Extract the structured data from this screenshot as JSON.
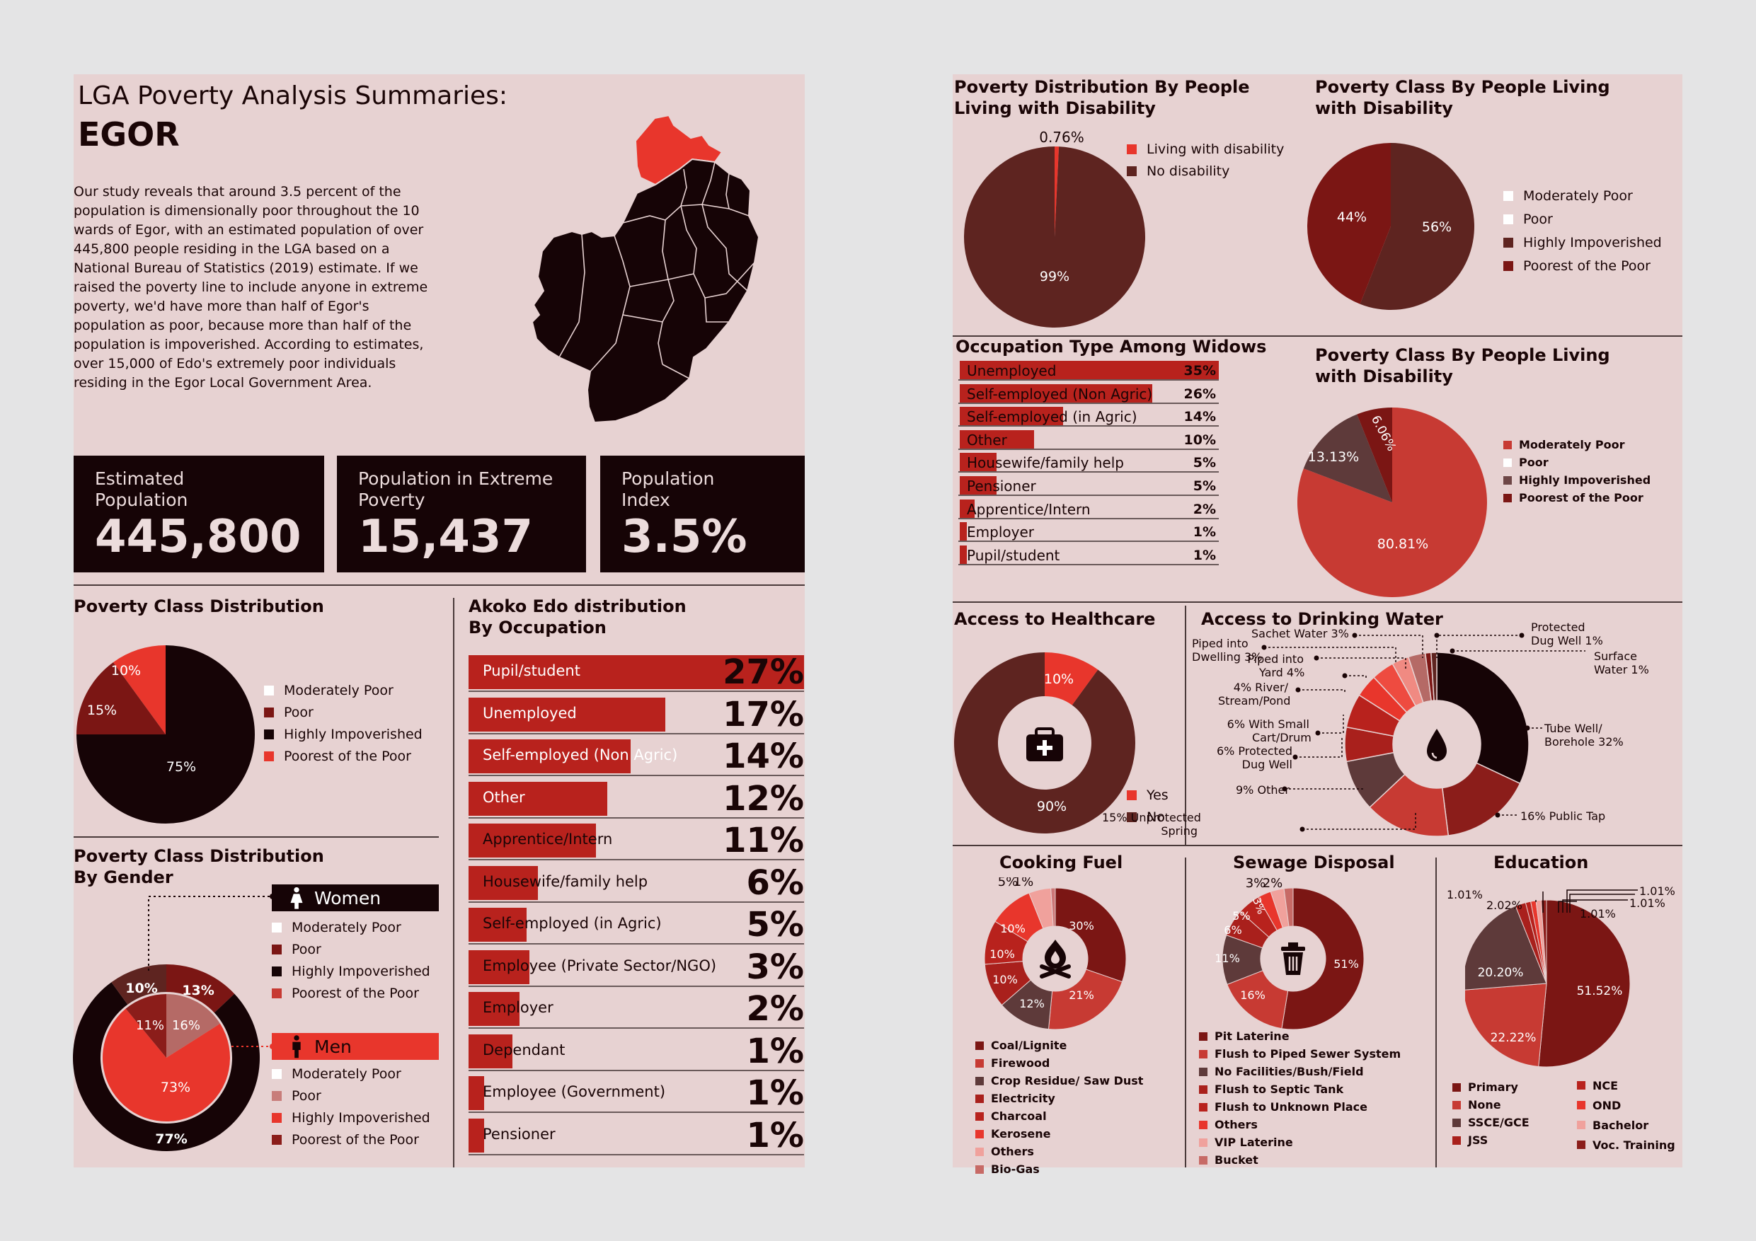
{
  "left": {
    "title": "LGA Poverty Analysis Summaries:",
    "name": "EGOR",
    "intro_lines": [
      "Our study reveals that around 3.5 percent of the",
      "population is dimensionally poor throughout the 10",
      "wards of Egor, with an estimated population of over",
      "445,800 people residing in the LGA based on a",
      "National Bureau of Statistics (2019) estimate. If we",
      "raised the poverty line to include anyone in extreme",
      "poverty, we'd have more than half of Egor's",
      "population as poor, because more than half of the",
      "population is impoverished. According to estimates,",
      "over 15,000 of Edo's extremely poor individuals",
      "residing in the Egor Local Government Area."
    ],
    "stats": [
      {
        "label1": "Estimated",
        "label2": "Population",
        "value": "445,800"
      },
      {
        "label1": "Population in Extreme",
        "label2": "Poverty",
        "value": "15,437"
      },
      {
        "label1": "Population",
        "label2": "Index",
        "value": "3.5%"
      }
    ]
  },
  "legend4": [
    "Moderately Poor",
    "Poor",
    "Highly Impoverished",
    "Poorest of the Poor"
  ],
  "gender": {
    "women": "Women",
    "men": "Men"
  },
  "colors": {
    "dark": "#160406",
    "maroon": "#5e2420",
    "red": "#e8362c",
    "crimson": "#c73a33",
    "deep": "#7b1614",
    "white": "#ffffff",
    "pink": "#e7d2d2"
  },
  "icons": [
    "map-of-egor-icon",
    "woman-icon",
    "man-icon",
    "medical-kit-icon",
    "water-drop-icon",
    "campfire-icon",
    "trash-can-icon"
  ],
  "chart_data": [
    {
      "type": "pie",
      "title": "Poverty Class Distribution",
      "labels": [
        "Moderately Poor",
        "Poor",
        "Highly Impoverished",
        "Poorest of the Poor"
      ],
      "values": [
        0,
        15,
        75,
        10
      ],
      "value_labels": [
        "",
        "15%",
        "75%",
        "10%"
      ]
    },
    {
      "type": "pie",
      "title": "Poverty Class Distribution",
      "subtitle": "By Gender",
      "series": [
        {
          "name": "Women",
          "labels": [
            "Moderately Poor",
            "Poor",
            "Highly Impoverished",
            "Poorest of the Poor"
          ],
          "values": [
            0,
            13,
            77,
            10
          ],
          "value_labels": [
            "",
            "13%",
            "77%",
            "10%"
          ]
        },
        {
          "name": "Men",
          "labels": [
            "Moderately Poor",
            "Poor",
            "Highly Impoverished",
            "Poorest of the Poor"
          ],
          "values": [
            0,
            16,
            73,
            11
          ],
          "value_labels": [
            "",
            "16%",
            "73%",
            "11%"
          ]
        }
      ]
    },
    {
      "type": "bar",
      "title": "Akoko Edo distribution",
      "subtitle": "By Occupation",
      "categories": [
        "Pupil/student",
        "Unemployed",
        "Self-employed (Non Agric)",
        "Other",
        "Apprentice/Intern",
        "Housewife/family help",
        "Self-employed (in Agric)",
        "Employee (Private Sector/NGO)",
        "Employer",
        "Dependant",
        "Employee (Government)",
        "Pensioner"
      ],
      "values": [
        27,
        17,
        14,
        12,
        11,
        6,
        5,
        3,
        2,
        1,
        1,
        1
      ],
      "value_labels": [
        "27%",
        "17%",
        "14%",
        "12%",
        "11%",
        "6%",
        "5%",
        "3%",
        "2%",
        "1%",
        "1%",
        "1%"
      ]
    },
    {
      "type": "pie",
      "title": "Poverty Distribution By People",
      "subtitle": "Living with Disability",
      "labels": [
        "Living with disability",
        "No disability"
      ],
      "values": [
        0.76,
        99.24
      ],
      "value_labels": [
        "0.76%",
        "99%"
      ]
    },
    {
      "type": "pie",
      "title": "Poverty Class By People Living",
      "subtitle": "with Disability",
      "labels": [
        "Moderately Poor",
        "Poor",
        "Highly Impoverished",
        "Poorest of the Poor"
      ],
      "values": [
        0,
        0,
        56,
        44
      ],
      "value_labels": [
        "",
        "",
        "56%",
        "44%"
      ]
    },
    {
      "type": "bar",
      "title": "Occupation Type Among Widows",
      "categories": [
        "Unemployed",
        "Self-employed (Non Agric)",
        "Self-employed (in Agric)",
        "Other",
        "Housewife/family help",
        "Pensioner",
        "Apprentice/Intern",
        "Employer",
        "Pupil/student"
      ],
      "values": [
        35,
        26,
        14,
        10,
        5,
        5,
        2,
        1,
        1
      ],
      "value_labels": [
        "35%",
        "26%",
        "14%",
        "10%",
        "5%",
        "5%",
        "2%",
        "1%",
        "1%"
      ]
    },
    {
      "type": "pie",
      "title": "Poverty Class By People Living",
      "subtitle": "with Disability",
      "labels": [
        "Moderately Poor",
        "Poor",
        "Highly Impoverished",
        "Poorest of the Poor"
      ],
      "values": [
        80.81,
        0,
        13.13,
        6.06
      ],
      "value_labels": [
        "80.81%",
        "",
        "13.13%",
        "6.06%"
      ]
    },
    {
      "type": "pie",
      "title": "Access to Healthcare",
      "labels": [
        "Yes",
        "No"
      ],
      "values": [
        10,
        90
      ],
      "value_labels": [
        "10%",
        "90%"
      ]
    },
    {
      "type": "pie",
      "title": "Access to Drinking Water",
      "labels": [
        "Tube Well/ Borehole",
        "Public Tap",
        "Unprotected Spring",
        "Other",
        "Protected Dug Well",
        "With Small Cart/Drum",
        "River/ Stream/Pond",
        "Piped into Yard",
        "Piped into Dwelling",
        "Sachet Water",
        "Protected Dug Well",
        "Surface Water"
      ],
      "values": [
        32,
        16,
        15,
        9,
        6,
        6,
        4,
        4,
        3,
        3,
        1,
        1
      ]
    },
    {
      "type": "pie",
      "title": "Cooking Fuel",
      "labels": [
        "Coal/Lignite",
        "Firewood",
        "Crop Residue/ Saw Dust",
        "Electricity",
        "Charcoal",
        "Kerosene",
        "Others",
        "Bio-Gas"
      ],
      "values": [
        30,
        21,
        12,
        10,
        10,
        10,
        5,
        1
      ],
      "value_labels": [
        "30%",
        "21%",
        "12%",
        "10%",
        "10%",
        "10%",
        "5%",
        "1%"
      ]
    },
    {
      "type": "pie",
      "title": "Sewage Disposal",
      "labels": [
        "Pit Laterine",
        "Flush to Piped Sewer System",
        "No Facilities/Bush/Field",
        "Flush to Septic Tank",
        "Flush to Unknown Place",
        "Others",
        "VIP Laterine",
        "Bucket"
      ],
      "values": [
        51,
        16,
        11,
        6,
        5,
        3,
        3,
        2
      ],
      "value_labels": [
        "51%",
        "16%",
        "11%",
        "6%",
        "5%",
        "3%",
        "3%",
        "2%"
      ]
    },
    {
      "type": "pie",
      "title": "Education",
      "labels": [
        "Primary",
        "None",
        "SSCE/GCE",
        "JSS",
        "NCE",
        "OND",
        "Bachelor",
        "Voc. Training"
      ],
      "values": [
        51.52,
        22.22,
        20.2,
        2.02,
        1.01,
        1.01,
        1.01,
        1.01
      ],
      "value_labels": [
        "51.52%",
        "22.22%",
        "20.20%",
        "2.02%",
        "1.01%",
        "1.01%",
        "1.01%",
        "1.01%"
      ]
    }
  ]
}
